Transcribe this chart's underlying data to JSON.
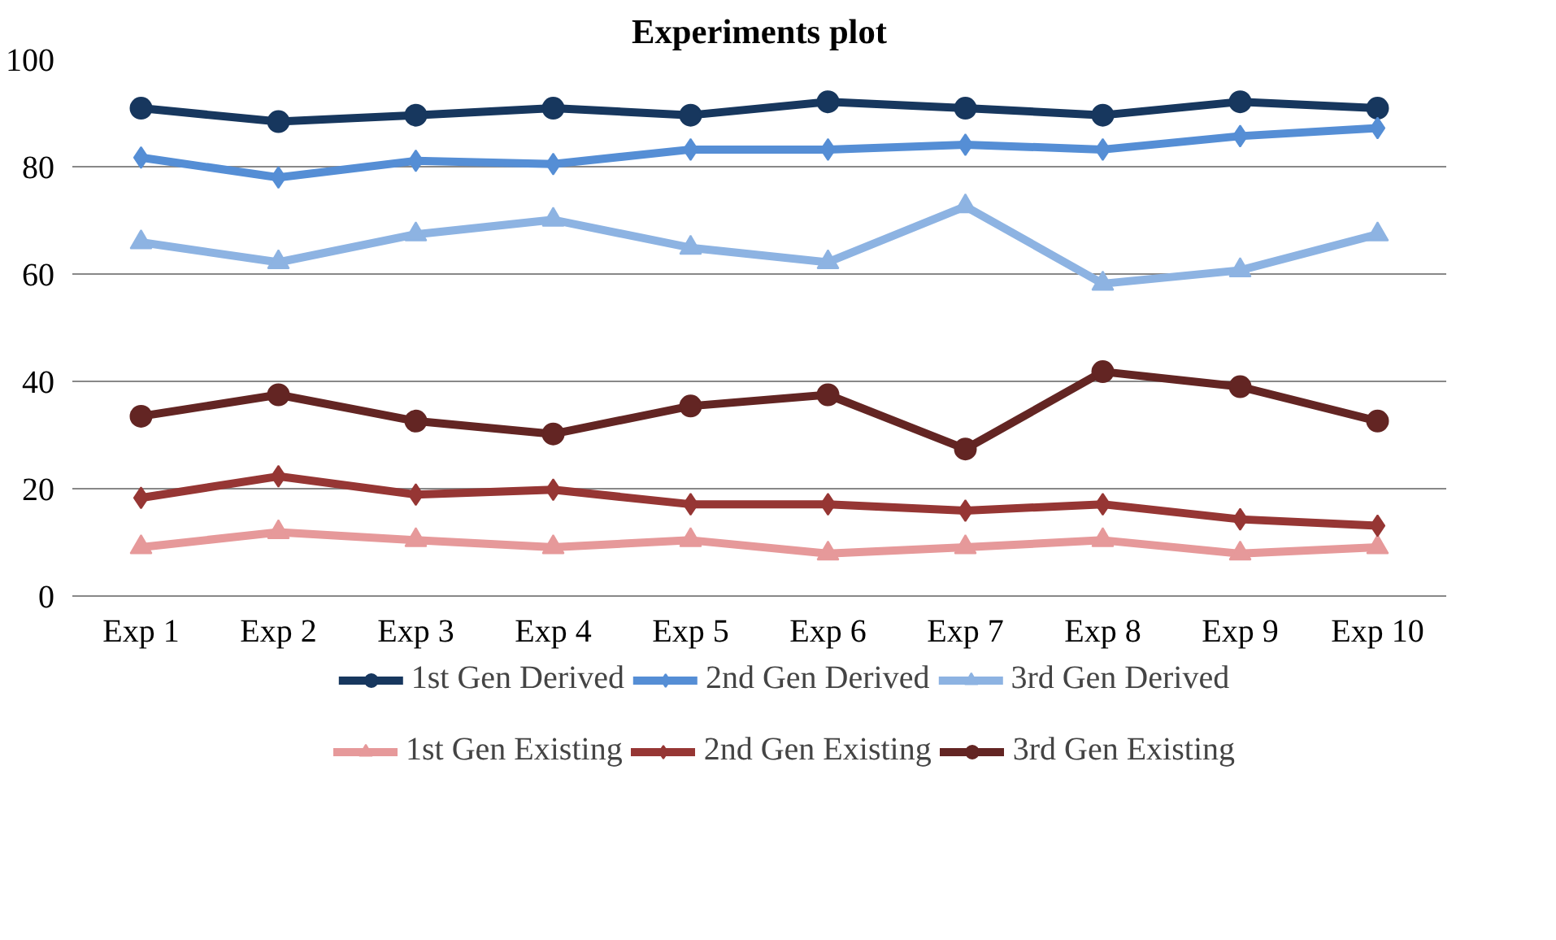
{
  "chart_data": {
    "type": "line",
    "title": "Experiments plot",
    "categories": [
      "Exp 1",
      "Exp 2",
      "Exp 3",
      "Exp 4",
      "Exp 5",
      "Exp 6",
      "Exp 7",
      "Exp 8",
      "Exp 9",
      "Exp 10"
    ],
    "ylim": [
      0,
      100
    ],
    "yticks": [
      0,
      20,
      40,
      60,
      80,
      100
    ],
    "grid": "y",
    "legend": "bottom",
    "line_style": "solid",
    "series": [
      {
        "name": "1st Gen Derived",
        "color": "#17375e",
        "marker": "circle",
        "values": [
          90.9,
          88.4,
          89.6,
          90.9,
          89.6,
          92.1,
          90.9,
          89.6,
          92.1,
          90.9
        ]
      },
      {
        "name": "2nd Gen Derived",
        "color": "#558ed5",
        "marker": "diamond",
        "values": [
          81.7,
          78.0,
          81.1,
          80.5,
          83.2,
          83.2,
          84.1,
          83.2,
          85.7,
          87.2
        ]
      },
      {
        "name": "3rd Gen Derived",
        "color": "#8db3e2",
        "marker": "triangle",
        "values": [
          65.9,
          62.2,
          67.4,
          70.1,
          64.9,
          62.2,
          72.6,
          58.2,
          60.7,
          67.4
        ]
      },
      {
        "name": "1st Gen Existing",
        "color": "#e6999a",
        "marker": "triangle",
        "values": [
          9.1,
          11.9,
          10.4,
          9.1,
          10.4,
          7.9,
          9.1,
          10.4,
          7.9,
          9.1
        ]
      },
      {
        "name": "2nd Gen Existing",
        "color": "#963634",
        "marker": "diamond",
        "values": [
          18.3,
          22.3,
          18.9,
          19.8,
          17.1,
          17.1,
          15.9,
          17.1,
          14.3,
          13.1
        ]
      },
      {
        "name": "3rd Gen Existing",
        "color": "#632523",
        "marker": "circle",
        "values": [
          33.5,
          37.5,
          32.6,
          30.2,
          35.4,
          37.5,
          27.4,
          41.8,
          39.0,
          32.6
        ]
      }
    ]
  }
}
